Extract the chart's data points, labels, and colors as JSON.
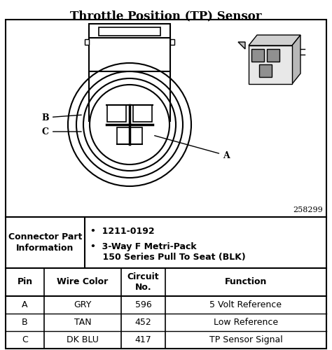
{
  "title": "Throttle Position (TP) Sensor",
  "title_fontsize": 12,
  "bg_color": "#ffffff",
  "border_color": "#000000",
  "diagram_ref": "258299",
  "connector_part_info": {
    "label": "Connector Part\nInformation",
    "bullet1": "•  1211-0192",
    "bullet2": "•  3-Way F Metri-Pack\n    150 Series Pull To Seat (BLK)"
  },
  "table_headers": [
    "Pin",
    "Wire Color",
    "Circuit\nNo.",
    "Function"
  ],
  "table_rows": [
    [
      "A",
      "GRY",
      "596",
      "5 Volt Reference"
    ],
    [
      "B",
      "TAN",
      "452",
      "Low Reference"
    ],
    [
      "C",
      "DK BLU",
      "417",
      "TP Sensor Signal"
    ]
  ]
}
